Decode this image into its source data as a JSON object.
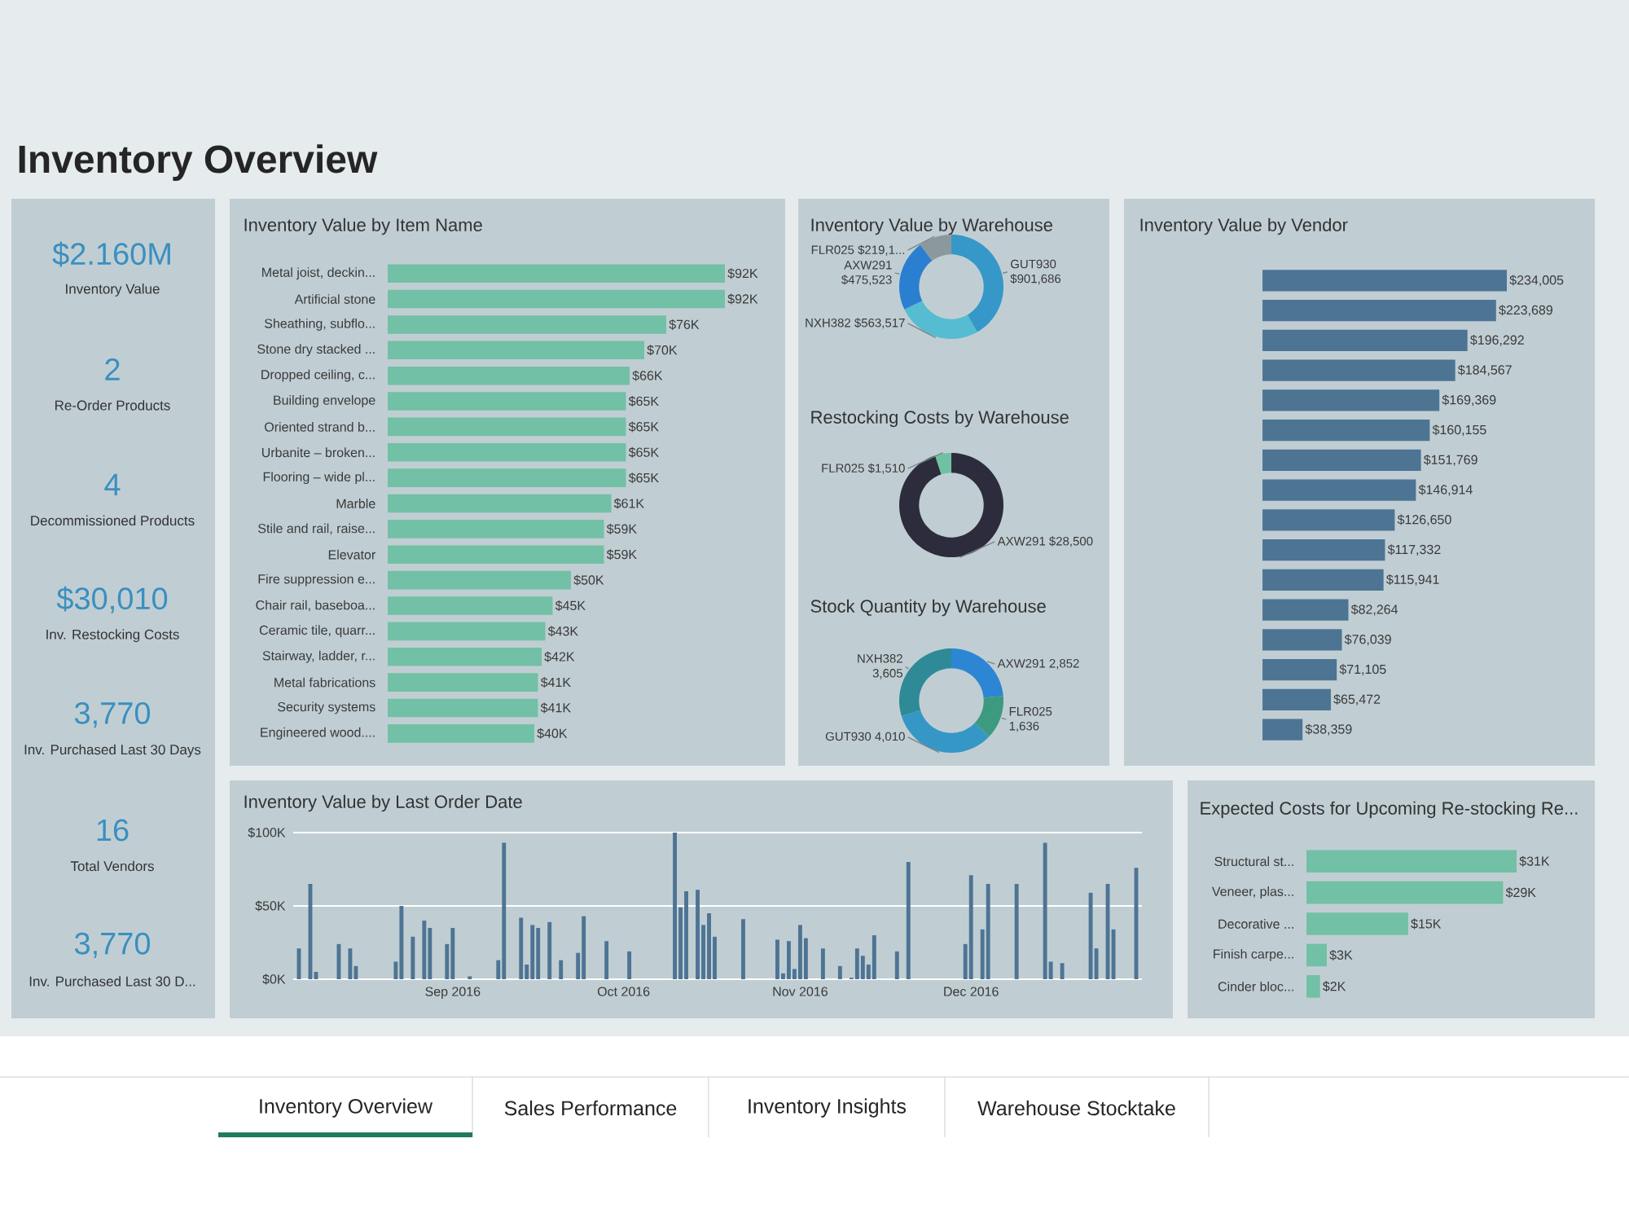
{
  "chart_data": [
    {
      "type": "other",
      "title": "Inventory Overview"
    },
    {
      "type": "other",
      "annotations": [
        "$2.160M",
        "Inventory Value",
        "2",
        "Re-Order Products",
        "4",
        "Decommissioned Products",
        "$30,010",
        "Inv. Restocking Costs",
        "3,770",
        "Inv. Purchased Last 30 Days",
        "16",
        "Total Vendors",
        "3,770",
        "Inv. Purchased Last 30 D..."
      ]
    },
    {
      "type": "bar",
      "orientation": "horizontal",
      "title": "Inventory Value by Item Name",
      "color": "#72c0a5",
      "categories": [
        "Metal joist, deckin...",
        "Artificial stone",
        "Sheathing, subflo...",
        "Stone dry stacked ...",
        "Dropped ceiling, c...",
        "Building envelope",
        "Oriented strand b...",
        "Urbanite – broken...",
        "Flooring – wide pl...",
        "Marble",
        "Stile and rail, raise...",
        "Elevator",
        "Fire suppression e...",
        "Chair rail, baseboa...",
        "Ceramic tile, quarr...",
        "Stairway, ladder, r...",
        "Metal fabrications",
        "Security systems",
        "Engineered wood...."
      ],
      "values": [
        92,
        92,
        76,
        70,
        66,
        65,
        65,
        65,
        65,
        61,
        59,
        59,
        50,
        45,
        43,
        42,
        41,
        41,
        40
      ],
      "value_labels": [
        "$92K",
        "$92K",
        "$76K",
        "$70K",
        "$66K",
        "$65K",
        "$65K",
        "$65K",
        "$65K",
        "$61K",
        "$59K",
        "$59K",
        "$50K",
        "$45K",
        "$43K",
        "$42K",
        "$41K",
        "$41K",
        "$40K"
      ]
    },
    {
      "type": "donut",
      "title": "Inventory Value by Warehouse",
      "categories": [
        "GUT930",
        "NXH382",
        "AXW291",
        "FLR025"
      ],
      "values": [
        901686,
        563517,
        475523,
        219150
      ],
      "value_labels": [
        "$901,686",
        "$563,517",
        "$475,523",
        "$219,1..."
      ],
      "colors": [
        "#3598c8",
        "#55bcd2",
        "#2b7fd0",
        "#8c999c"
      ]
    },
    {
      "type": "donut",
      "title": "Restocking Costs by Warehouse",
      "categories": [
        "AXW291",
        "FLR025"
      ],
      "values": [
        28500,
        1510
      ],
      "value_labels": [
        "$28,500",
        "$1,510"
      ],
      "colors": [
        "#2d2c3c",
        "#6fc1a2"
      ]
    },
    {
      "type": "donut",
      "title": "Stock Quantity by Warehouse",
      "categories": [
        "AXW291",
        "FLR025",
        "GUT930",
        "NXH382"
      ],
      "values": [
        2852,
        1636,
        4010,
        3605
      ],
      "value_labels": [
        "2,852",
        "1,636",
        "4,010",
        "3,605"
      ],
      "colors": [
        "#2c86d4",
        "#3e9a7f",
        "#3597c6",
        "#2e8a96"
      ]
    },
    {
      "type": "bar",
      "orientation": "horizontal",
      "title": "Inventory Value by Vendor",
      "color": "#4e7494",
      "categories": [
        null,
        null,
        null,
        null,
        null,
        null,
        null,
        null,
        null,
        null,
        null,
        null,
        null,
        null,
        null,
        null
      ],
      "values": [
        234005,
        223689,
        196292,
        184567,
        169369,
        160155,
        151769,
        146914,
        126650,
        117332,
        115941,
        82264,
        76039,
        71105,
        65472,
        38359
      ],
      "value_labels": [
        "$234,005",
        "$223,689",
        "$196,292",
        "$184,567",
        "$169,369",
        "$160,155",
        "$151,769",
        "$146,914",
        "$126,650",
        "$117,332",
        "$115,941",
        "$82,264",
        "$76,039",
        "$71,105",
        "$65,472",
        "$38,359"
      ]
    },
    {
      "type": "bar",
      "title": "Inventory Value by Last Order Date",
      "color": "#4e7494",
      "grid": "y",
      "x": [
        "2016-08-05",
        "2016-08-07",
        "2016-08-08",
        "2016-08-12",
        "2016-08-14",
        "2016-08-15",
        "2016-08-22",
        "2016-08-23",
        "2016-08-25",
        "2016-08-27",
        "2016-08-28",
        "2016-08-31",
        "2016-09-01",
        "2016-09-04",
        "2016-09-09",
        "2016-09-10",
        "2016-09-13",
        "2016-09-14",
        "2016-09-15",
        "2016-09-16",
        "2016-09-18",
        "2016-09-20",
        "2016-09-23",
        "2016-09-24",
        "2016-09-28",
        "2016-10-02",
        "2016-10-10",
        "2016-10-11",
        "2016-10-12",
        "2016-10-14",
        "2016-10-15",
        "2016-10-16",
        "2016-10-17",
        "2016-10-22",
        "2016-10-28",
        "2016-10-29",
        "2016-10-30",
        "2016-10-31",
        "2016-11-01",
        "2016-11-02",
        "2016-11-05",
        "2016-11-08",
        "2016-11-10",
        "2016-11-11",
        "2016-11-12",
        "2016-11-13",
        "2016-11-14",
        "2016-11-18",
        "2016-11-20",
        "2016-11-30",
        "2016-12-01",
        "2016-12-03",
        "2016-12-04",
        "2016-12-09",
        "2016-12-14",
        "2016-12-15",
        "2016-12-17",
        "2016-12-22",
        "2016-12-23",
        "2016-12-25",
        "2016-12-26",
        "2016-12-30"
      ],
      "values": [
        21,
        65,
        5,
        24,
        21,
        9,
        12,
        50,
        29,
        40,
        35,
        24,
        35,
        2,
        13,
        93,
        42,
        10,
        37,
        35,
        39,
        13,
        18,
        43,
        26,
        19,
        100,
        49,
        60,
        61,
        37,
        45,
        29,
        41,
        27,
        4,
        26,
        7,
        37,
        28,
        21,
        9,
        1,
        21,
        16,
        10,
        30,
        19,
        80,
        24,
        71,
        34,
        65,
        65,
        93,
        12,
        11,
        59,
        21,
        65,
        34,
        76
      ],
      "xlim": [
        "2016-08-04",
        "2016-12-31"
      ],
      "xticks": [
        {
          "value": "2016-09-01",
          "label": "Sep 2016"
        },
        {
          "value": "2016-10-01",
          "label": "Oct 2016"
        },
        {
          "value": "2016-11-01",
          "label": "Nov 2016"
        },
        {
          "value": "2016-12-01",
          "label": "Dec 2016"
        }
      ],
      "ylim": [
        0,
        100
      ],
      "yticks": [
        {
          "value": 0,
          "label": "$0K"
        },
        {
          "value": 50,
          "label": "$50K"
        },
        {
          "value": 100,
          "label": "$100K"
        }
      ]
    },
    {
      "type": "bar",
      "orientation": "horizontal",
      "title": "Expected Costs for Upcoming Re-stocking Re...",
      "color": "#72c0a5",
      "categories": [
        "Structural st...",
        "Veneer, plas...",
        "Decorative ...",
        "Finish carpe...",
        "Cinder bloc..."
      ],
      "values": [
        31,
        29,
        15,
        3,
        2
      ],
      "value_labels": [
        "$31K",
        "$29K",
        "$15K",
        "$3K",
        "$2K"
      ]
    },
    {
      "type": "other",
      "annotations": [
        "Inventory Overview",
        "Sales Performance",
        "Inventory Insights",
        "Warehouse Stocktake"
      ]
    }
  ]
}
